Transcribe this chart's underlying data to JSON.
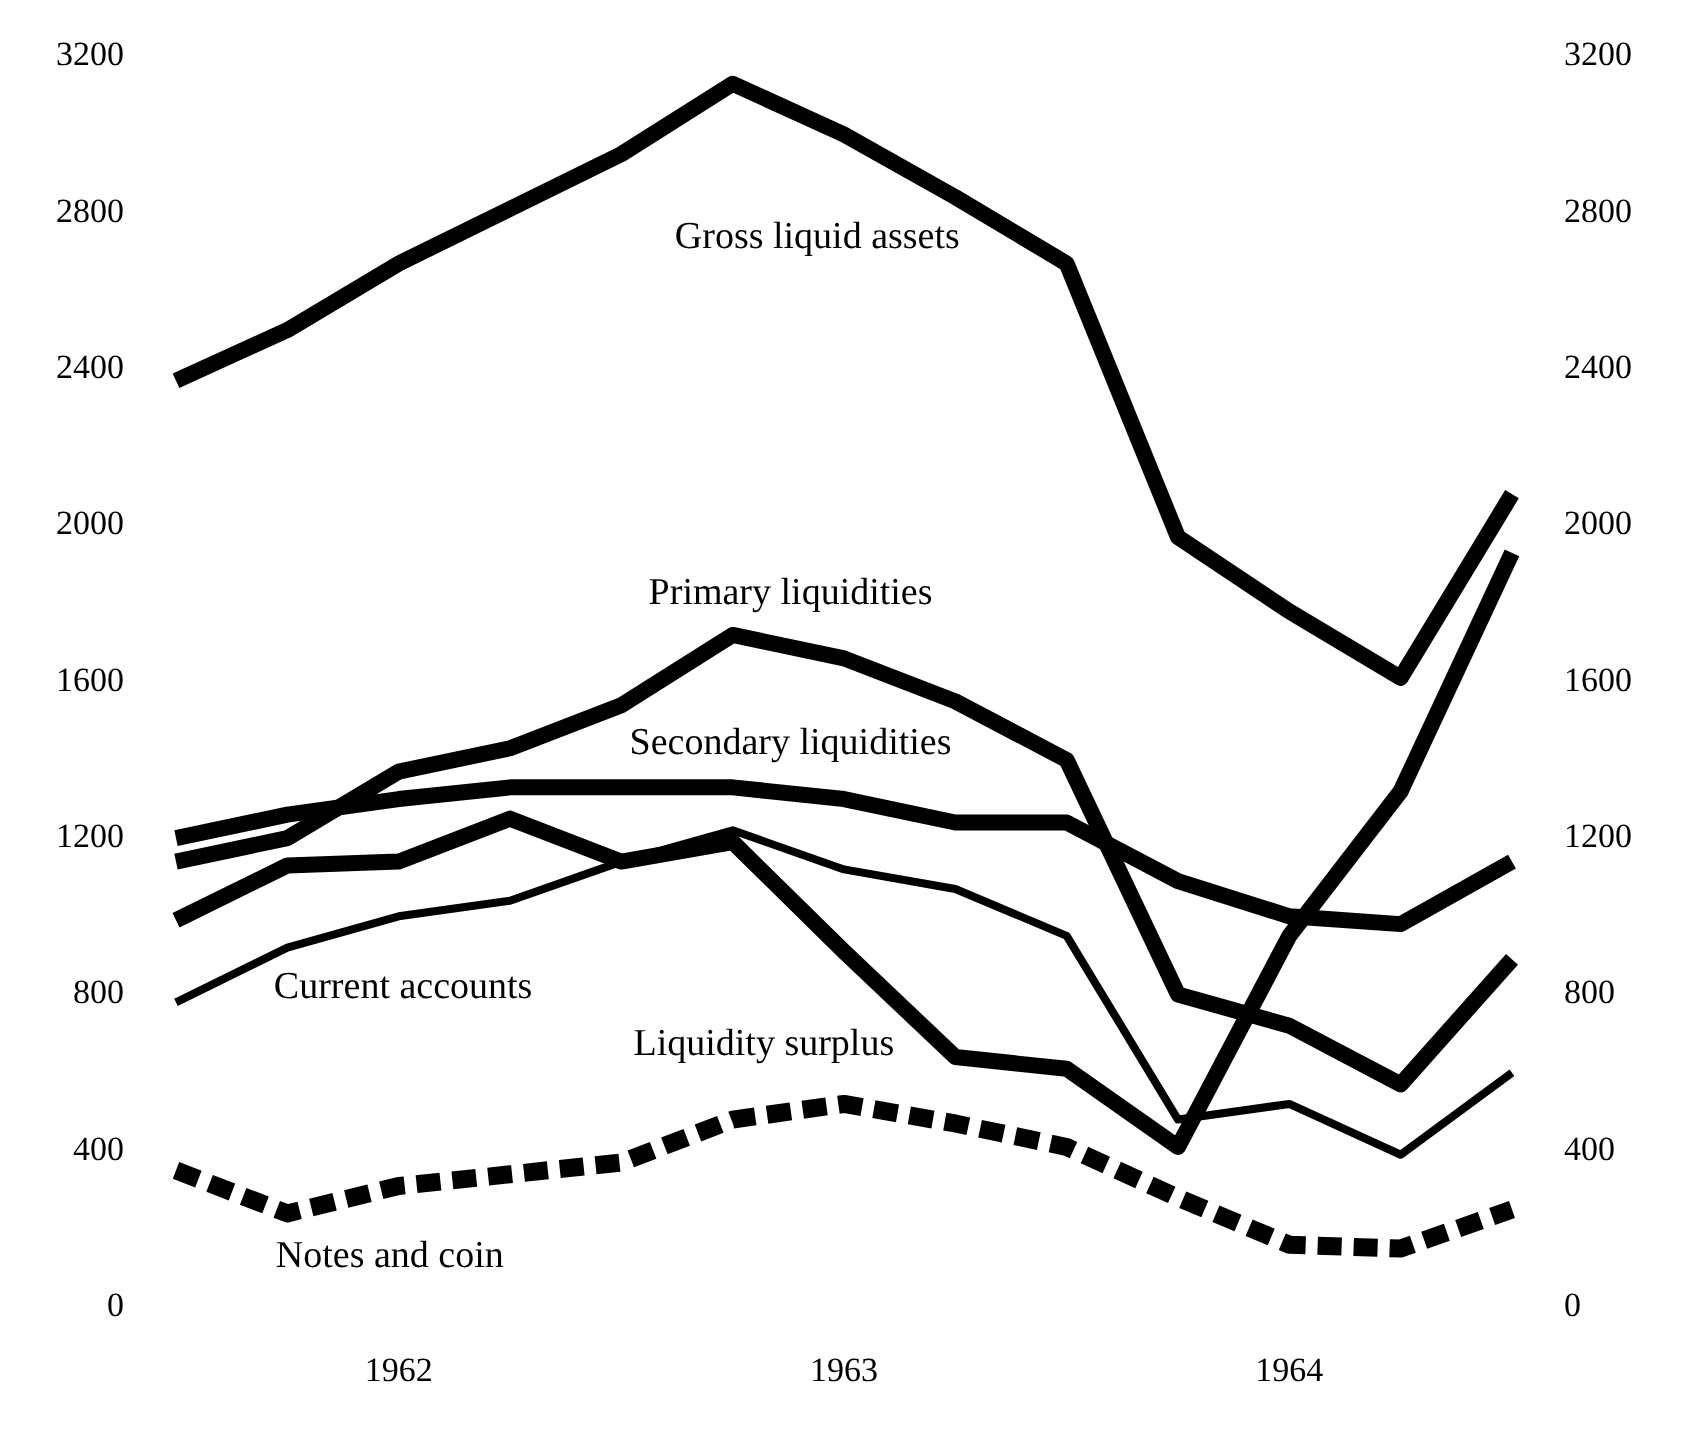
{
  "chart_data": {
    "type": "line",
    "categories": [
      null,
      null,
      "1962",
      null,
      null,
      null,
      "1963",
      null,
      null,
      null,
      "1964",
      null,
      null
    ],
    "series": [
      {
        "name": "Gross liquid assets",
        "color": "#000000",
        "values": [
          2370,
          2500,
          2670,
          2810,
          2950,
          3130,
          3000,
          2840,
          2670,
          1970,
          1780,
          1610,
          2080
        ]
      },
      {
        "name": "Primary liquidities",
        "color": "#000000",
        "values": [
          1140,
          1200,
          1370,
          1430,
          1540,
          1720,
          1660,
          1550,
          1400,
          800,
          720,
          570,
          890
        ]
      },
      {
        "name": "Secondary liquidities",
        "color": "#000000",
        "values": [
          1200,
          1260,
          1300,
          1330,
          1330,
          1330,
          1300,
          1240,
          1240,
          1090,
          1000,
          980,
          1140
        ]
      },
      {
        "name": "Current accounts",
        "color": "#000000",
        "values": [
          780,
          920,
          1000,
          1040,
          1140,
          1220,
          1120,
          1070,
          950,
          480,
          520,
          390,
          600
        ]
      },
      {
        "name": "Liquidity surplus",
        "color": "#000000",
        "values": [
          990,
          1130,
          1140,
          1250,
          1140,
          1190,
          910,
          640,
          610,
          410,
          950,
          1320,
          1930
        ]
      },
      {
        "name": "Notes and coin",
        "color": "#000000",
        "line_style": "dashed",
        "values": [
          350,
          240,
          310,
          340,
          370,
          480,
          520,
          470,
          410,
          280,
          160,
          150,
          250
        ]
      }
    ],
    "ylim": [
      0,
      3200
    ],
    "yticks": [
      0,
      400,
      800,
      1200,
      1600,
      2000,
      2400,
      2800,
      3200
    ],
    "y2lim": [
      0,
      3200
    ],
    "y2ticks": [
      0,
      400,
      800,
      1200,
      1600,
      2000,
      2400,
      2800,
      3200
    ],
    "grid": false,
    "legend": false,
    "marker": "none",
    "line_style": "solid"
  }
}
